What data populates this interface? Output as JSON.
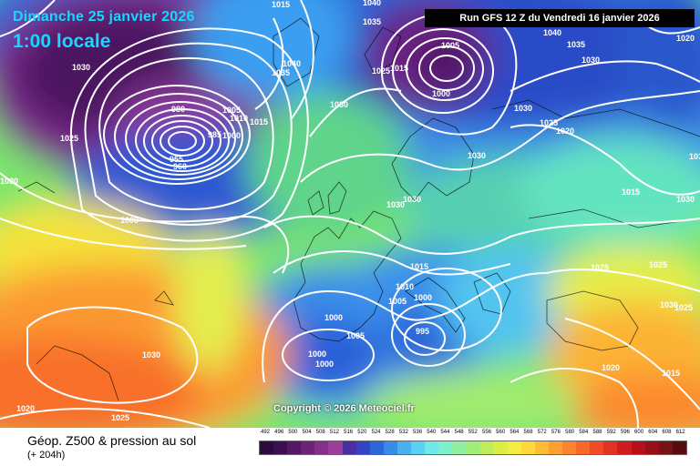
{
  "header": {
    "date": "Dimanche 25 janvier 2026",
    "time": "1:00 locale",
    "run": "Run GFS 12 Z du Vendredi 16 janvier 2026"
  },
  "map": {
    "copyright": "Copyright © 2026 Meteociel.fr",
    "isobar_labels": [
      "1015",
      "1040",
      "1035",
      "1040",
      "1035",
      "1030",
      "1025",
      "1015",
      "1030",
      "1005",
      "1000",
      "980",
      "1005",
      "1010",
      "1015",
      "985",
      "1000",
      "955",
      "960",
      "1025",
      "1030",
      "1040",
      "1035",
      "1030",
      "1025",
      "1030",
      "1020",
      "1030",
      "1015",
      "1000",
      "1030",
      "1030",
      "1015",
      "1010",
      "1005",
      "1000",
      "1000",
      "995",
      "1000",
      "1000",
      "1005",
      "1030",
      "1020",
      "1025",
      "1025",
      "1020",
      "1015",
      "1025",
      "1030",
      "1025",
      "1030",
      "1020",
      "1030",
      "1030"
    ]
  },
  "footer": {
    "title": "Géop. Z500 & pression au sol",
    "subtitle": "(+ 204h)",
    "legend_ticks": [
      "492",
      "496",
      "500",
      "504",
      "508",
      "512",
      "516",
      "520",
      "524",
      "528",
      "532",
      "536",
      "540",
      "544",
      "548",
      "552",
      "556",
      "560",
      "564",
      "568",
      "572",
      "576",
      "580",
      "584",
      "588",
      "592",
      "596",
      "600",
      "604",
      "608",
      "612"
    ],
    "legend_colors": [
      "#2b0a3d",
      "#3c0f52",
      "#551866",
      "#6e2378",
      "#86308a",
      "#9c3d9c",
      "#4a2ea6",
      "#3345c4",
      "#2d66dc",
      "#3a8ae8",
      "#4ab0f0",
      "#5ad0f4",
      "#6ee8e8",
      "#7cf0c8",
      "#8cf0a0",
      "#a2ec7c",
      "#c0ec5c",
      "#dcee46",
      "#f4ec3e",
      "#fcd83a",
      "#fcbc36",
      "#fca032",
      "#fc842e",
      "#f8682a",
      "#f04a26",
      "#e43222",
      "#d01c1e",
      "#b8101a",
      "#981016",
      "#781214",
      "#580c10"
    ]
  },
  "colors": {
    "isobar": "#ffffff",
    "header_text": "#16d8ff",
    "run_box_bg": "#000000"
  }
}
